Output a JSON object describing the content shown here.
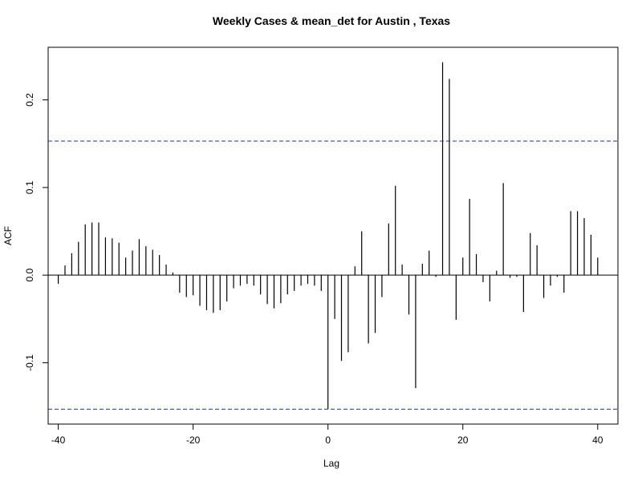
{
  "chart_data": {
    "type": "bar",
    "title": "Weekly Cases & mean_det for Austin , Texas",
    "xlabel": "Lag",
    "ylabel": "ACF",
    "xlim": [
      -41.5,
      43
    ],
    "ylim": [
      -0.17,
      0.26
    ],
    "x_ticks": [
      -40,
      -20,
      0,
      20,
      40
    ],
    "y_ticks": [
      -0.1,
      0.0,
      0.1,
      0.2
    ],
    "y_tick_labels": [
      "-0.1",
      "0.0",
      "0.1",
      "0.2"
    ],
    "confidence_bound": 0.153,
    "grid": false,
    "colors": {
      "bars": "#000000",
      "confidence_lines": "#1f3a93",
      "zero_line": "#000000"
    },
    "x": [
      -40,
      -39,
      -38,
      -37,
      -36,
      -35,
      -34,
      -33,
      -32,
      -31,
      -30,
      -29,
      -28,
      -27,
      -26,
      -25,
      -24,
      -23,
      -22,
      -21,
      -20,
      -19,
      -18,
      -17,
      -16,
      -15,
      -14,
      -13,
      -12,
      -11,
      -10,
      -9,
      -8,
      -7,
      -6,
      -5,
      -4,
      -3,
      -2,
      -1,
      0,
      1,
      2,
      3,
      4,
      5,
      6,
      7,
      8,
      9,
      10,
      11,
      12,
      13,
      14,
      15,
      16,
      17,
      18,
      19,
      20,
      21,
      22,
      23,
      24,
      25,
      26,
      27,
      28,
      29,
      30,
      31,
      32,
      33,
      34,
      35,
      36,
      37,
      38,
      39,
      40
    ],
    "values": [
      -0.01,
      0.011,
      0.025,
      0.038,
      0.058,
      0.06,
      0.06,
      0.043,
      0.042,
      0.037,
      0.02,
      0.028,
      0.041,
      0.033,
      0.029,
      0.023,
      0.012,
      0.003,
      -0.02,
      -0.025,
      -0.023,
      -0.035,
      -0.04,
      -0.043,
      -0.04,
      -0.03,
      -0.015,
      -0.012,
      -0.01,
      -0.012,
      -0.022,
      -0.033,
      -0.038,
      -0.032,
      -0.022,
      -0.018,
      -0.012,
      -0.01,
      -0.012,
      -0.018,
      -0.153,
      -0.05,
      -0.098,
      -0.088,
      0.01,
      0.05,
      -0.078,
      -0.066,
      -0.025,
      0.059,
      0.102,
      0.012,
      -0.045,
      -0.129,
      0.013,
      0.028,
      -0.002,
      0.243,
      0.224,
      -0.051,
      0.02,
      0.087,
      0.024,
      -0.008,
      -0.03,
      0.005,
      0.105,
      -0.003,
      -0.002,
      -0.042,
      0.048,
      0.034,
      -0.026,
      -0.012,
      -0.002,
      -0.02,
      0.073,
      0.073,
      0.065,
      0.046,
      0.02
    ]
  }
}
